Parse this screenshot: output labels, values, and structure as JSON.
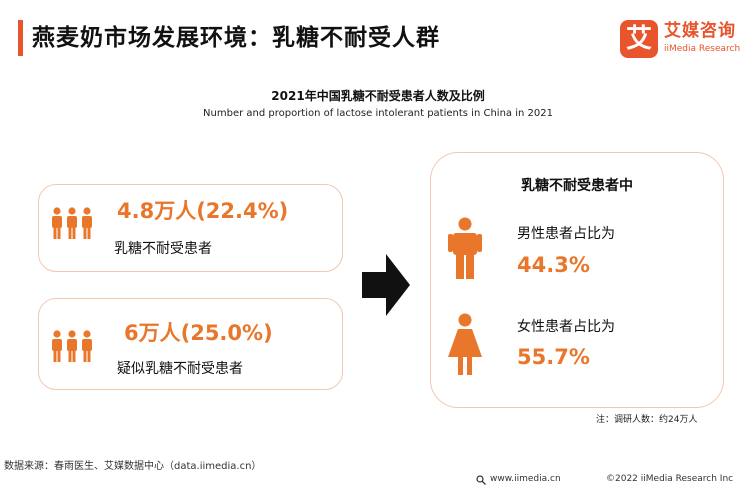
{
  "header": {
    "title": "燕麦奶市场发展环境：乳糖不耐受人群"
  },
  "logo": {
    "mark": "艾",
    "name_cn": "艾媒咨询",
    "name_en": "iiMedia Research"
  },
  "subtitle": {
    "cn": "2021年中国乳糖不耐受患者人数及比例",
    "en": "Number and proportion of lactose intolerant patients in China in 2021"
  },
  "left_cards": [
    {
      "value": "4.8万人(22.4%)",
      "label": "乳糖不耐受患者",
      "icon": "people-group-icon"
    },
    {
      "value": "6万人(25.0%)",
      "label": "疑似乳糖不耐受患者",
      "icon": "people-group-icon"
    }
  ],
  "right_card": {
    "title": "乳糖不耐受患者中",
    "male": {
      "label": "男性患者占比为",
      "value": "44.3%",
      "icon": "male-icon"
    },
    "female": {
      "label": "女性患者占比为",
      "value": "55.7%",
      "icon": "female-icon"
    }
  },
  "note": "注：调研人数：约24万人",
  "source": "数据来源：春雨医生、艾媒数据中心（data.iimedia.cn）",
  "footer": {
    "url": "www.iimedia.cn",
    "copyright": "©2022  iiMedia Research  Inc"
  },
  "colors": {
    "accent": "#e8542c",
    "value": "#e8772c",
    "card_border": "#f2c8b0"
  }
}
